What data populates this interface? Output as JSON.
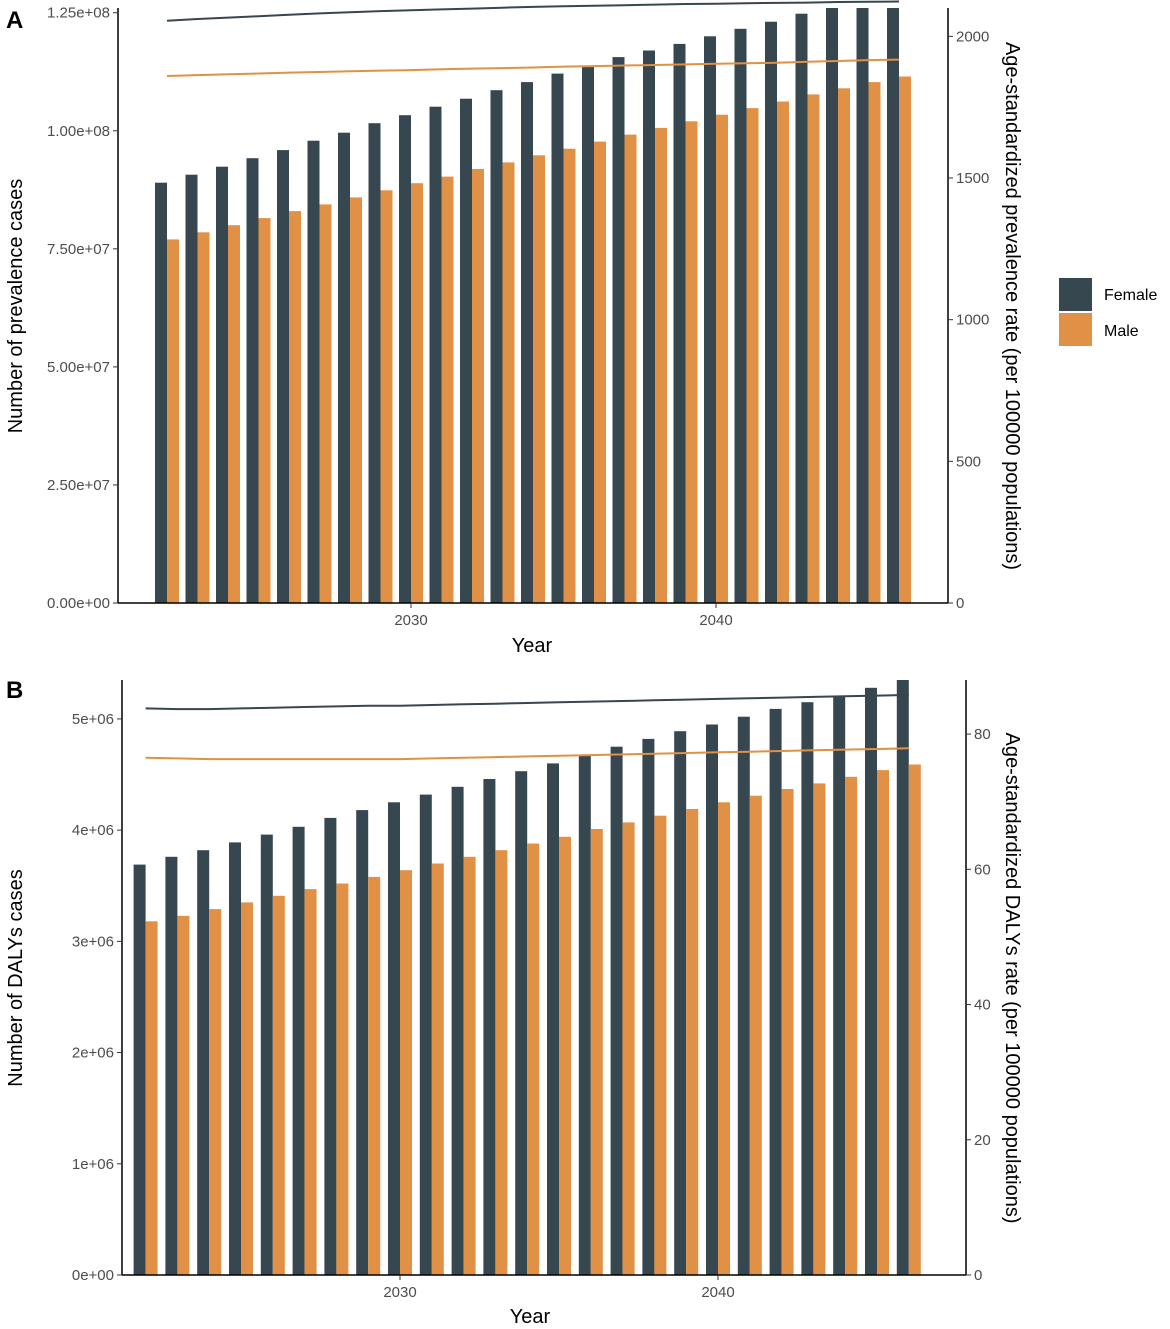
{
  "colors": {
    "female": "#36474f",
    "male": "#e09145",
    "axis": "#000000",
    "tick_text": "#4d4d4d"
  },
  "legend": {
    "items": [
      {
        "label": "Female",
        "color": "#36474f"
      },
      {
        "label": "Male",
        "color": "#e09145"
      }
    ],
    "position": "right"
  },
  "chart_data": [
    {
      "panel": "A",
      "type": "bar+line",
      "xlabel": "Year",
      "ylabel_left": "Number of prevalence cases",
      "ylabel_right": "Age-standardized prevalence rate (per 100000 populations)",
      "xticks": [
        "2030",
        "2040"
      ],
      "yticks_left": [
        "0.00e+00",
        "2.50e+07",
        "5.00e+07",
        "7.50e+07",
        "1.00e+08",
        "1.25e+08"
      ],
      "yticks_right": [
        "0",
        "500",
        "1000",
        "1500",
        "2000"
      ],
      "ylim_left": [
        0,
        126000000
      ],
      "ylim_right": [
        0,
        2100
      ],
      "years": [
        2022,
        2023,
        2024,
        2025,
        2026,
        2027,
        2028,
        2029,
        2030,
        2031,
        2032,
        2033,
        2034,
        2035,
        2036,
        2037,
        2038,
        2039,
        2040,
        2041,
        2042,
        2043,
        2044,
        2045,
        2046
      ],
      "bars": [
        {
          "name": "Female",
          "values": [
            89000000,
            90700000,
            92400000,
            94200000,
            95900000,
            97900000,
            99600000,
            101600000,
            103300000,
            105100000,
            106800000,
            108600000,
            110300000,
            112100000,
            113800000,
            115600000,
            117000000,
            118400000,
            120000000,
            121600000,
            123100000,
            124800000,
            126300000,
            127800000,
            129500000
          ]
        },
        {
          "name": "Male",
          "values": [
            77000000,
            78500000,
            80000000,
            81500000,
            83000000,
            84400000,
            85900000,
            87400000,
            88900000,
            90300000,
            91900000,
            93300000,
            94800000,
            96200000,
            97700000,
            99200000,
            100600000,
            102000000,
            103400000,
            104800000,
            106200000,
            107700000,
            109000000,
            110300000,
            111500000
          ]
        }
      ],
      "lines": [
        {
          "name": "Female",
          "values": [
            2055,
            2061,
            2066,
            2071,
            2076,
            2081,
            2085,
            2089,
            2092,
            2095,
            2098,
            2101,
            2104,
            2106,
            2108,
            2110,
            2112,
            2114,
            2115,
            2117,
            2118,
            2119,
            2121,
            2122,
            2123
          ]
        },
        {
          "name": "Male",
          "values": [
            1860,
            1863,
            1866,
            1869,
            1872,
            1874,
            1877,
            1879,
            1881,
            1884,
            1886,
            1888,
            1890,
            1893,
            1895,
            1897,
            1899,
            1901,
            1903,
            1905,
            1907,
            1910,
            1913,
            1916,
            1918
          ]
        }
      ]
    },
    {
      "panel": "B",
      "type": "bar+line",
      "xlabel": "Year",
      "ylabel_left": "Number of DALYs cases",
      "ylabel_right": "Age-standardized DALYs rate (per 100000 populations)",
      "xticks": [
        "2030",
        "2040"
      ],
      "yticks_left": [
        "0e+00",
        "1e+06",
        "2e+06",
        "3e+06",
        "4e+06",
        "5e+06"
      ],
      "yticks_right": [
        "0",
        "20",
        "40",
        "60",
        "80"
      ],
      "ylim_left": [
        0,
        5350000
      ],
      "ylim_right": [
        0,
        88
      ],
      "years": [
        2022,
        2023,
        2024,
        2025,
        2026,
        2027,
        2028,
        2029,
        2030,
        2031,
        2032,
        2033,
        2034,
        2035,
        2036,
        2037,
        2038,
        2039,
        2040,
        2041,
        2042,
        2043,
        2044,
        2045,
        2046
      ],
      "bars": [
        {
          "name": "Female",
          "values": [
            3690000,
            3760000,
            3820000,
            3890000,
            3960000,
            4030000,
            4110000,
            4180000,
            4250000,
            4320000,
            4390000,
            4460000,
            4530000,
            4600000,
            4670000,
            4750000,
            4820000,
            4890000,
            4950000,
            5020000,
            5090000,
            5150000,
            5210000,
            5280000,
            5350000
          ]
        },
        {
          "name": "Male",
          "values": [
            3180000,
            3230000,
            3290000,
            3350000,
            3410000,
            3470000,
            3520000,
            3580000,
            3640000,
            3700000,
            3760000,
            3820000,
            3880000,
            3940000,
            4010000,
            4070000,
            4130000,
            4190000,
            4250000,
            4310000,
            4370000,
            4420000,
            4480000,
            4540000,
            4590000
          ]
        }
      ],
      "lines": [
        {
          "name": "Female",
          "values": [
            83.8,
            83.7,
            83.7,
            83.8,
            83.9,
            84.0,
            84.1,
            84.2,
            84.2,
            84.3,
            84.4,
            84.5,
            84.6,
            84.7,
            84.8,
            84.9,
            85.0,
            85.1,
            85.2,
            85.3,
            85.4,
            85.5,
            85.6,
            85.7,
            85.8
          ]
        },
        {
          "name": "Male",
          "values": [
            76.5,
            76.4,
            76.3,
            76.3,
            76.3,
            76.3,
            76.3,
            76.3,
            76.3,
            76.4,
            76.5,
            76.6,
            76.7,
            76.8,
            76.9,
            77.0,
            77.1,
            77.2,
            77.3,
            77.4,
            77.5,
            77.6,
            77.7,
            77.8,
            77.9
          ]
        }
      ]
    }
  ]
}
